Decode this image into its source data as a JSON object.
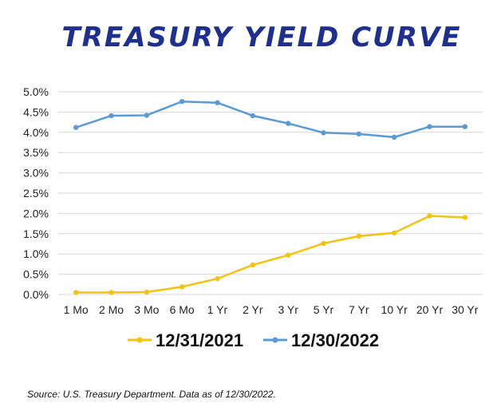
{
  "title": "TREASURY YIELD CURVE",
  "source_note": "Source: U.S. Treasury Department. Data as of 12/30/2022.",
  "colors": {
    "title": "#1f2f8f",
    "series_2021": "#f2c313",
    "series_2022": "#5b9bd5",
    "grid": "#d9d9d9"
  },
  "chart_data": {
    "type": "line",
    "title": "TREASURY YIELD CURVE",
    "categories": [
      "1 Mo",
      "2 Mo",
      "3 Mo",
      "6 Mo",
      "1 Yr",
      "2 Yr",
      "3 Yr",
      "5 Yr",
      "7 Yr",
      "10 Yr",
      "20 Yr",
      "30 Yr"
    ],
    "y_ticks": [
      "0.0%",
      "0.5%",
      "1.0%",
      "1.5%",
      "2.0%",
      "2.5%",
      "3.0%",
      "3.5%",
      "4.0%",
      "4.5%",
      "5.0%"
    ],
    "ylim": [
      0,
      5
    ],
    "grid": true,
    "legend_position": "bottom",
    "series": [
      {
        "name": "12/31/2021",
        "values": [
          0.05,
          0.05,
          0.06,
          0.19,
          0.39,
          0.73,
          0.97,
          1.26,
          1.44,
          1.52,
          1.94,
          1.9
        ]
      },
      {
        "name": "12/30/2022",
        "values": [
          4.12,
          4.41,
          4.42,
          4.76,
          4.73,
          4.41,
          4.22,
          3.99,
          3.96,
          3.88,
          4.14,
          4.14
        ]
      }
    ]
  }
}
